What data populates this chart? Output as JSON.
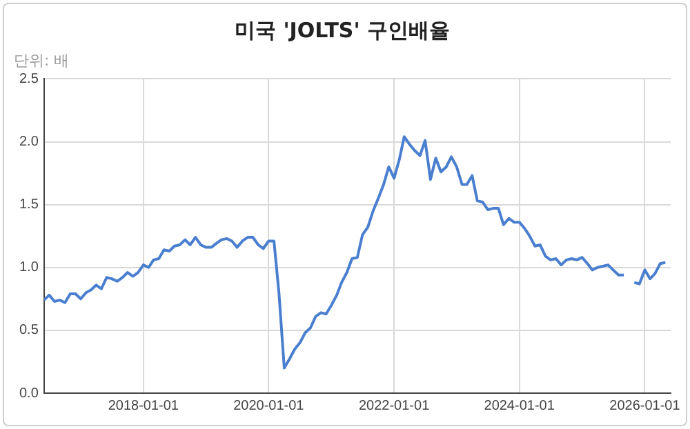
{
  "chart_data": {
    "type": "line",
    "title": "미국 'JOLTS' 구인배율",
    "subtitle": "단위: 배",
    "x": [
      "2016-06",
      "2016-07",
      "2016-08",
      "2016-09",
      "2016-10",
      "2016-11",
      "2016-12",
      "2017-01",
      "2017-02",
      "2017-03",
      "2017-04",
      "2017-05",
      "2017-06",
      "2017-07",
      "2017-08",
      "2017-09",
      "2017-10",
      "2017-11",
      "2017-12",
      "2018-01",
      "2018-02",
      "2018-03",
      "2018-04",
      "2018-05",
      "2018-06",
      "2018-07",
      "2018-08",
      "2018-09",
      "2018-10",
      "2018-11",
      "2018-12",
      "2019-01",
      "2019-02",
      "2019-03",
      "2019-04",
      "2019-05",
      "2019-06",
      "2019-07",
      "2019-08",
      "2019-09",
      "2019-10",
      "2019-11",
      "2019-12",
      "2020-01",
      "2020-02",
      "2020-03",
      "2020-04",
      "2020-05",
      "2020-06",
      "2020-07",
      "2020-08",
      "2020-09",
      "2020-10",
      "2020-11",
      "2020-12",
      "2021-01",
      "2021-02",
      "2021-03",
      "2021-04",
      "2021-05",
      "2021-06",
      "2021-07",
      "2021-08",
      "2021-09",
      "2021-10",
      "2021-11",
      "2021-12",
      "2022-01",
      "2022-02",
      "2022-03",
      "2022-04",
      "2022-05",
      "2022-06",
      "2022-07",
      "2022-08",
      "2022-09",
      "2022-10",
      "2022-11",
      "2022-12",
      "2023-01",
      "2023-02",
      "2023-03",
      "2023-04",
      "2023-05",
      "2023-06",
      "2023-07",
      "2023-08",
      "2023-09",
      "2023-10",
      "2023-11",
      "2023-12",
      "2024-01",
      "2024-02",
      "2024-03",
      "2024-04",
      "2024-05",
      "2024-06",
      "2024-07",
      "2024-08",
      "2024-09",
      "2024-10",
      "2024-11",
      "2024-12",
      "2025-01",
      "2025-02",
      "2025-03",
      "2025-04",
      "2025-05",
      "2025-06",
      "2025-07",
      "2025-08",
      "2025-09",
      "2025-10",
      "2025-11",
      "2025-12",
      "2026-01",
      "2026-02",
      "2026-03",
      "2026-04",
      "2026-05"
    ],
    "series": [
      {
        "color": "#4a7fcf",
        "values": [
          0.74,
          0.78,
          0.73,
          0.74,
          0.72,
          0.79,
          0.79,
          0.75,
          0.8,
          0.82,
          0.86,
          0.83,
          0.92,
          0.91,
          0.89,
          0.92,
          0.96,
          0.93,
          0.96,
          1.02,
          1.0,
          1.06,
          1.07,
          1.14,
          1.13,
          1.17,
          1.18,
          1.22,
          1.18,
          1.24,
          1.18,
          1.16,
          1.16,
          1.19,
          1.22,
          1.23,
          1.21,
          1.16,
          1.21,
          1.24,
          1.24,
          1.18,
          1.15,
          1.21,
          1.21,
          0.8,
          0.2,
          0.27,
          0.35,
          0.4,
          0.48,
          0.52,
          0.61,
          0.64,
          0.63,
          0.7,
          0.78,
          0.88,
          0.96,
          1.07,
          1.08,
          1.26,
          1.32,
          1.45,
          1.55,
          1.66,
          1.8,
          1.71,
          1.86,
          2.04,
          1.98,
          1.93,
          1.89,
          2.01,
          1.7,
          1.87,
          1.76,
          1.8,
          1.88,
          1.8,
          1.66,
          1.66,
          1.73,
          1.53,
          1.52,
          1.46,
          1.47,
          1.47,
          1.34,
          1.39,
          1.36,
          1.36,
          1.31,
          1.25,
          1.17,
          1.18,
          1.09,
          1.06,
          1.07,
          1.02,
          1.06,
          1.07,
          1.06,
          1.08,
          1.03,
          0.98,
          1.0,
          1.01,
          1.02,
          0.98,
          0.94,
          0.94,
          null,
          0.88,
          0.87,
          0.98,
          0.91,
          0.95,
          1.03,
          1.04
        ]
      }
    ],
    "xlim": [
      "2016-06",
      "2026-06"
    ],
    "xticks": [
      "2018-01-01",
      "2020-01-01",
      "2022-01-01",
      "2024-01-01",
      "2026-01-01"
    ],
    "ylim": [
      0,
      2.5
    ],
    "yticks": [
      {
        "value": 0,
        "label": "0.0"
      },
      {
        "value": 0.5,
        "label": "0.5"
      },
      {
        "value": 1,
        "label": "1.0"
      },
      {
        "value": 1.5,
        "label": "1.5"
      },
      {
        "value": 2,
        "label": "2.0"
      },
      {
        "value": 2.5,
        "label": "2.5"
      }
    ],
    "grid": true,
    "legend": false,
    "marker": "none",
    "line_style": "solid"
  }
}
